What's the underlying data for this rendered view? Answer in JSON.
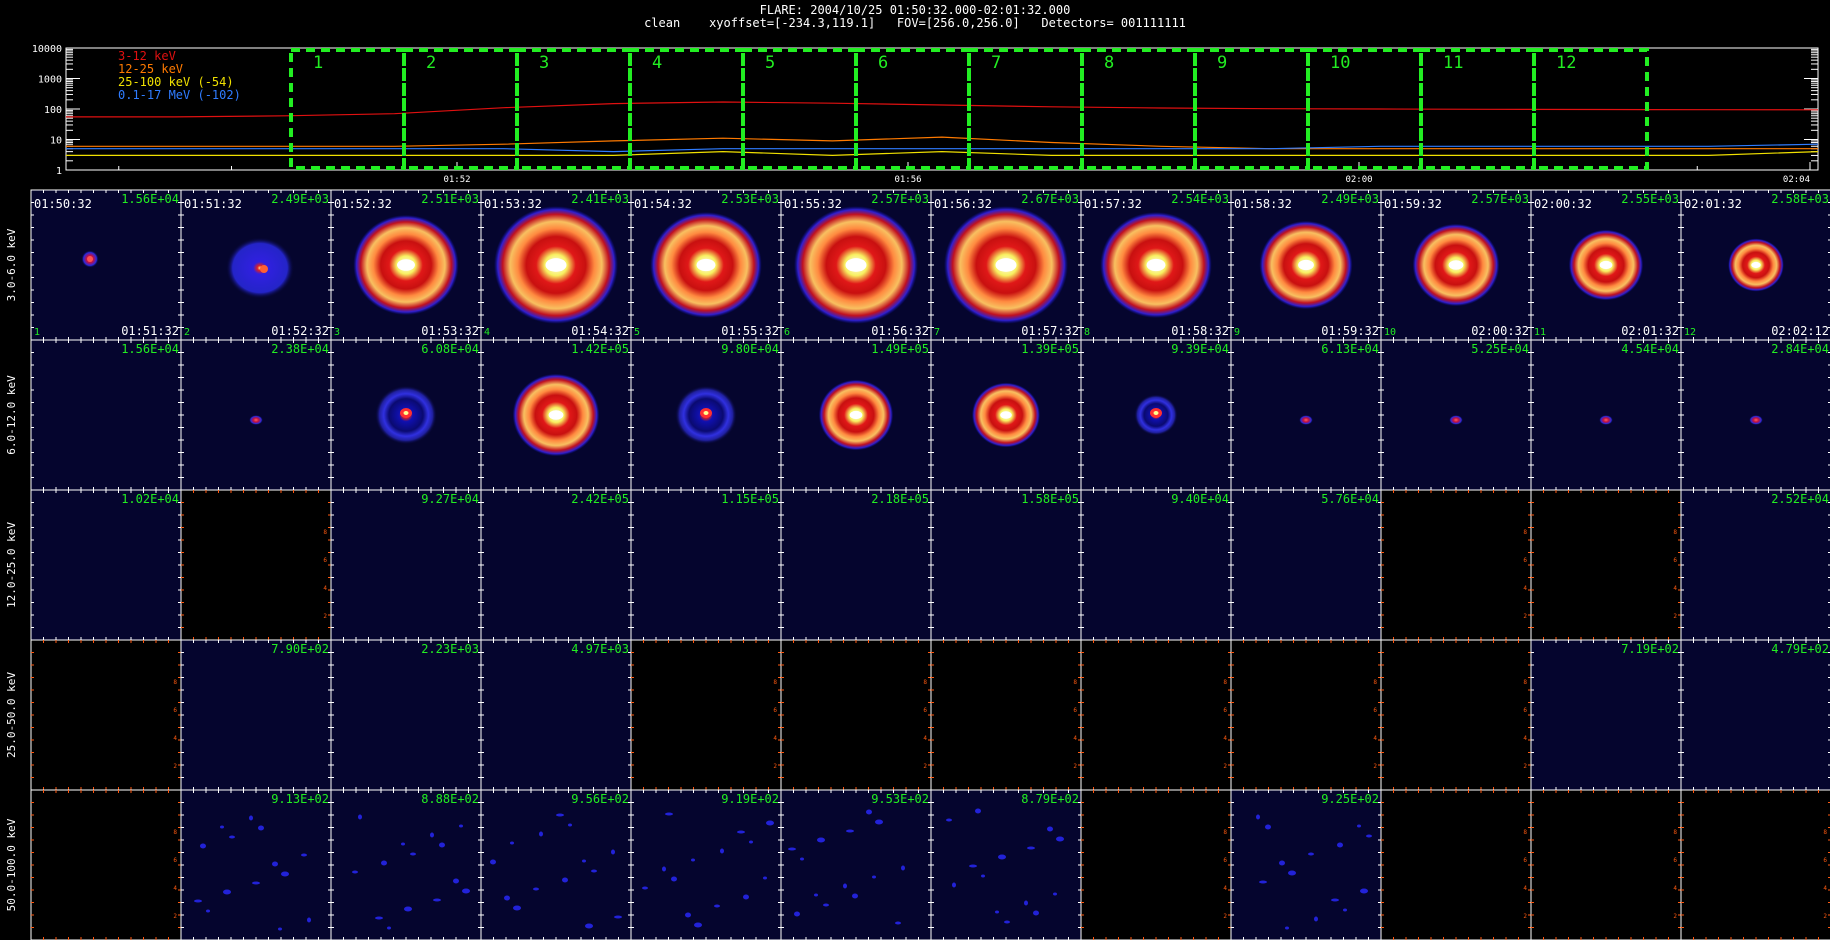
{
  "title": {
    "line1": "FLARE: 2004/10/25 01:50:32.000-02:01:32.000",
    "line2": "clean    xyoffset=[-234.3,119.1]   FOV=[256.0,256.0]   Detectors= 001111111"
  },
  "chart_data": {
    "type": "line",
    "lightcurve": {
      "y_scale": "log",
      "ylim": [
        1,
        10000
      ],
      "y_ticks": [
        "10000",
        "1000",
        "100",
        "10",
        "1"
      ],
      "x_ticks": [
        "01:52",
        "01:56",
        "02:00",
        "02:04"
      ],
      "intervals": [
        "1",
        "2",
        "3",
        "4",
        "5",
        "6",
        "7",
        "8",
        "9",
        "10",
        "11",
        "12"
      ],
      "legend": [
        {
          "name": "3-12 keV",
          "color": "#e01010"
        },
        {
          "name": "12-25 keV",
          "color": "#ff7a00"
        },
        {
          "name": "25-100 keV (-54)",
          "color": "#f0e000"
        },
        {
          "name": "0.1-17 MeV (-102)",
          "color": "#2f7cff"
        }
      ],
      "series": [
        {
          "name": "3-12 keV",
          "color": "#e01010",
          "values": [
            55,
            55,
            60,
            70,
            110,
            150,
            170,
            155,
            135,
            118,
            108,
            102,
            100,
            98,
            96,
            95,
            94
          ]
        },
        {
          "name": "12-25 keV",
          "color": "#ff7a00",
          "values": [
            6,
            6,
            6,
            6,
            7,
            9,
            11,
            9,
            12,
            8,
            6,
            5,
            5,
            5,
            5,
            5,
            5
          ]
        },
        {
          "name": "25-100 keV (-54)",
          "color": "#f0e000",
          "values": [
            3,
            3,
            3,
            3,
            3,
            3,
            4,
            3,
            4,
            3,
            3,
            3,
            3,
            3,
            3,
            3,
            4
          ]
        },
        {
          "name": "0.1-17 MeV (-102)",
          "color": "#2f7cff",
          "values": [
            5,
            5,
            5,
            5,
            5,
            4,
            5,
            5,
            5,
            5,
            5,
            5,
            6,
            6,
            6,
            6,
            7
          ]
        }
      ]
    },
    "image_grid": {
      "energy_bands": [
        "3.0-6.0 keV",
        "6.0-12.0 keV",
        "12.0-25.0 keV",
        "25.0-50.0 keV",
        "50.0-100.0 keV"
      ],
      "start_times": [
        "01:50:32",
        "01:51:32",
        "01:52:32",
        "01:53:32",
        "01:54:32",
        "01:55:32",
        "01:56:32",
        "01:57:32",
        "01:58:32",
        "01:59:32",
        "02:00:32",
        "02:01:32"
      ],
      "end_times": [
        "01:51:32",
        "01:52:32",
        "01:53:32",
        "01:54:32",
        "01:55:32",
        "01:56:32",
        "01:57:32",
        "01:58:32",
        "01:59:32",
        "02:00:32",
        "02:01:32",
        "02:02:12"
      ],
      "axis_ticks": [
        "2",
        "4",
        "6",
        "8"
      ],
      "cells": [
        [
          {
            "peak": "1.56E+04",
            "shape": "spot",
            "s": 0.28
          },
          {
            "peak": "2.49E+03",
            "shape": "diffuse",
            "s": 0.55
          },
          {
            "peak": "2.51E+03",
            "shape": "ring",
            "s": 0.85
          },
          {
            "peak": "2.41E+03",
            "shape": "ring",
            "s": 1.0
          },
          {
            "peak": "2.53E+03",
            "shape": "ring",
            "s": 0.9
          },
          {
            "peak": "2.57E+03",
            "shape": "ring",
            "s": 1.0
          },
          {
            "peak": "2.67E+03",
            "shape": "ring",
            "s": 1.0
          },
          {
            "peak": "2.54E+03",
            "shape": "ring",
            "s": 0.9
          },
          {
            "peak": "2.49E+03",
            "shape": "ring",
            "s": 0.75
          },
          {
            "peak": "2.57E+03",
            "shape": "ring",
            "s": 0.7
          },
          {
            "peak": "2.55E+03",
            "shape": "ring",
            "s": 0.6
          },
          {
            "peak": "2.58E+03",
            "shape": "ring",
            "s": 0.45
          }
        ],
        [
          {
            "peak": "1.56E+04",
            "shape": "none",
            "s": 0
          },
          {
            "peak": "2.38E+04",
            "shape": "dot",
            "s": 0.1
          },
          {
            "peak": "6.08E+04",
            "shape": "faint-ring",
            "s": 0.5
          },
          {
            "peak": "1.42E+05",
            "shape": "ring",
            "s": 0.7
          },
          {
            "peak": "9.80E+04",
            "shape": "faint-ring",
            "s": 0.5
          },
          {
            "peak": "1.49E+05",
            "shape": "ring",
            "s": 0.6
          },
          {
            "peak": "1.39E+05",
            "shape": "ring",
            "s": 0.55
          },
          {
            "peak": "9.39E+04",
            "shape": "faint-ring",
            "s": 0.35
          },
          {
            "peak": "6.13E+04",
            "shape": "dot",
            "s": 0.15
          },
          {
            "peak": "5.25E+04",
            "shape": "dot",
            "s": 0.12
          },
          {
            "peak": "4.54E+04",
            "shape": "dot",
            "s": 0.12
          },
          {
            "peak": "2.84E+04",
            "shape": "dot",
            "s": 0.1
          }
        ],
        [
          {
            "peak": "1.02E+04",
            "shape": "none",
            "s": 0
          },
          {
            "peak": "",
            "shape": "blank",
            "s": 0
          },
          {
            "peak": "9.27E+04",
            "shape": "none",
            "s": 0
          },
          {
            "peak": "2.42E+05",
            "shape": "none",
            "s": 0
          },
          {
            "peak": "1.15E+05",
            "shape": "none",
            "s": 0
          },
          {
            "peak": "2.18E+05",
            "shape": "none",
            "s": 0
          },
          {
            "peak": "1.58E+05",
            "shape": "none",
            "s": 0
          },
          {
            "peak": "9.40E+04",
            "shape": "none",
            "s": 0
          },
          {
            "peak": "5.76E+04",
            "shape": "none",
            "s": 0
          },
          {
            "peak": "",
            "shape": "blank",
            "s": 0
          },
          {
            "peak": "",
            "shape": "blank",
            "s": 0
          },
          {
            "peak": "2.52E+04",
            "shape": "none",
            "s": 0
          }
        ],
        [
          {
            "peak": "",
            "shape": "blank",
            "s": 0
          },
          {
            "peak": "7.90E+02",
            "shape": "none",
            "s": 0
          },
          {
            "peak": "2.23E+03",
            "shape": "none",
            "s": 0
          },
          {
            "peak": "4.97E+03",
            "shape": "none",
            "s": 0
          },
          {
            "peak": "",
            "shape": "blank",
            "s": 0
          },
          {
            "peak": "",
            "shape": "blank",
            "s": 0
          },
          {
            "peak": "",
            "shape": "blank",
            "s": 0
          },
          {
            "peak": "",
            "shape": "blank",
            "s": 0
          },
          {
            "peak": "",
            "shape": "blank",
            "s": 0
          },
          {
            "peak": "",
            "shape": "blank",
            "s": 0
          },
          {
            "peak": "7.19E+02",
            "shape": "none",
            "s": 0
          },
          {
            "peak": "4.79E+02",
            "shape": "none",
            "s": 0
          }
        ],
        [
          {
            "peak": "",
            "shape": "blank",
            "s": 0
          },
          {
            "peak": "9.13E+02",
            "shape": "speckle",
            "s": 0
          },
          {
            "peak": "8.88E+02",
            "shape": "speckle",
            "s": 0
          },
          {
            "peak": "9.56E+02",
            "shape": "speckle",
            "s": 0
          },
          {
            "peak": "9.19E+02",
            "shape": "speckle",
            "s": 0
          },
          {
            "peak": "9.53E+02",
            "shape": "speckle",
            "s": 0
          },
          {
            "peak": "8.79E+02",
            "shape": "speckle",
            "s": 0
          },
          {
            "peak": "",
            "shape": "blank",
            "s": 0
          },
          {
            "peak": "9.25E+02",
            "shape": "speckle",
            "s": 0
          },
          {
            "peak": "",
            "shape": "blank",
            "s": 0
          },
          {
            "peak": "",
            "shape": "blank",
            "s": 0
          },
          {
            "peak": "",
            "shape": "blank",
            "s": 0
          }
        ]
      ]
    }
  },
  "colors": {
    "interval_box": "#22ee22",
    "peak_label": "#22ee22",
    "time_label": "#ffffff",
    "blank_axis": "#ff5a10",
    "panel_bg": "#05052e"
  }
}
